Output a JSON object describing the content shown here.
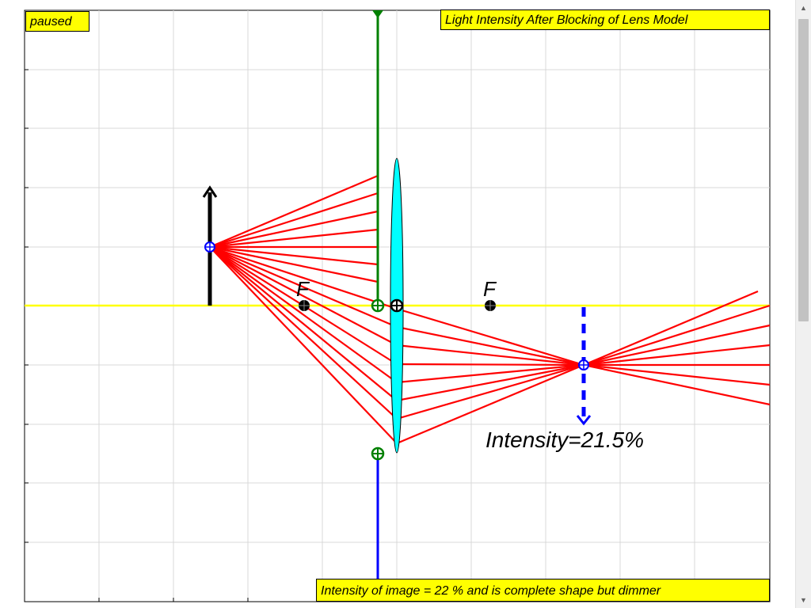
{
  "status_text": "paused",
  "title": "Light Intensity After Blocking of Lens Model",
  "caption": "Intensity of image = 22 % and is complete shape but dimmer",
  "intensity_label": "Intensity=21.5%",
  "focal_labels": {
    "left": "F",
    "right": "F"
  },
  "colors": {
    "optical_axis": "#ffff00",
    "rays": "#ff0000",
    "lens": "#00ffff",
    "blocker_top": "#008000",
    "blocker_bottom": "#0000ff",
    "object": "#000000",
    "image": "#0000ff",
    "grid": "#d9d9d9",
    "label_bg": "#ffff00"
  },
  "icons": {
    "scroll_up": "▲",
    "scroll_down": "▼"
  }
}
